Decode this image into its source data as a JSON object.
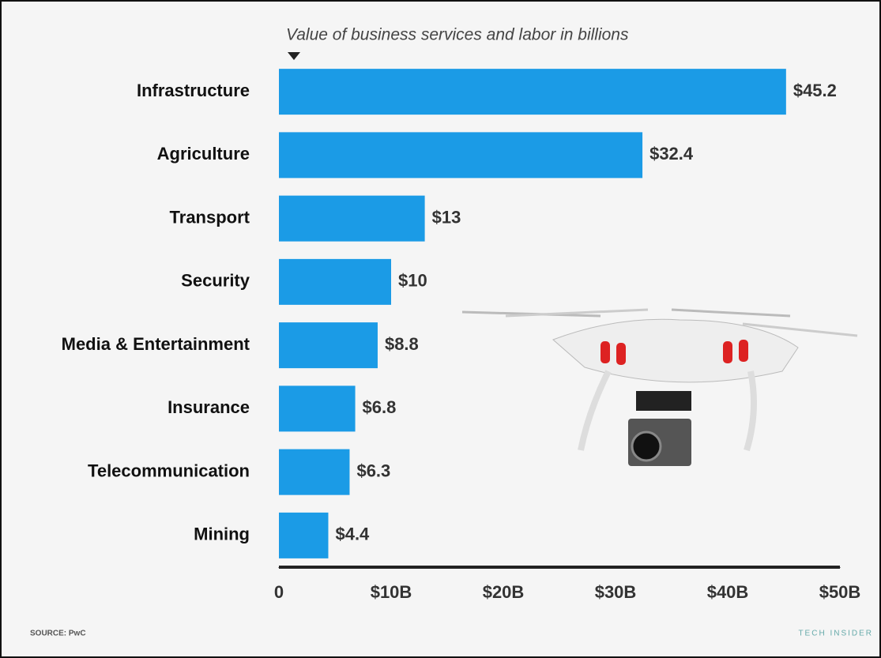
{
  "chart_data": {
    "type": "bar",
    "orientation": "horizontal",
    "title": "Value of business services and labor in billions",
    "categories": [
      "Infrastructure",
      "Agriculture",
      "Transport",
      "Security",
      "Media & Entertainment",
      "Insurance",
      "Telecommunication",
      "Mining"
    ],
    "values": [
      45.2,
      32.4,
      13,
      10,
      8.8,
      6.8,
      6.3,
      4.4
    ],
    "value_labels": [
      "$45.2",
      "$32.4",
      "$13",
      "$10",
      "$8.8",
      "$6.8",
      "$6.3",
      "$4.4"
    ],
    "color": "#1b9be6",
    "xlim": [
      0,
      50
    ],
    "xticks": [
      0,
      {
        "value": 10,
        "label": "$10B"
      },
      {
        "value": 20,
        "label": "$20B"
      },
      {
        "value": 30,
        "label": "$30B"
      },
      {
        "value": 40,
        "label": "$40B"
      },
      {
        "value": 50,
        "label": "$50B"
      }
    ],
    "source": "SOURCE: PwC",
    "brand": "TECH INSIDER"
  }
}
